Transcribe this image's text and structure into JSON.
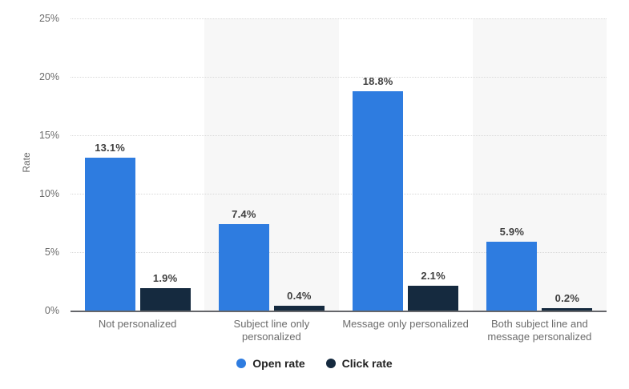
{
  "colors": {
    "background": "#ffffff",
    "band": "#f7f7f7",
    "gridline": "#d9d9d9",
    "axis_line": "#65666a",
    "tick_label": "#6b6b6b",
    "category_label": "#6b6b6b",
    "value_label": "#3f3f3f",
    "legend_label": "#222222",
    "open_rate": "#2e7ce0",
    "click_rate": "#152a3f"
  },
  "chart_data": {
    "type": "bar",
    "title": "",
    "xlabel": "",
    "ylabel": "Rate",
    "ylim": [
      0,
      25
    ],
    "yticks": [
      0,
      5,
      10,
      15,
      20,
      25
    ],
    "ytick_labels": [
      "0%",
      "5%",
      "10%",
      "15%",
      "20%",
      "25%"
    ],
    "grid": true,
    "grid_style": "dotted",
    "plot_bands": "alternating columns shaded",
    "legend_position": "bottom-center",
    "categories": [
      "Not personalized",
      "Subject line only personalized",
      "Message only personalized",
      "Both subject line and message personalized"
    ],
    "series": [
      {
        "name": "Open rate",
        "color": "#2e7ce0",
        "values": [
          13.1,
          7.4,
          18.8,
          5.9
        ],
        "value_labels": [
          "13.1%",
          "7.4%",
          "18.8%",
          "5.9%"
        ]
      },
      {
        "name": "Click rate",
        "color": "#152a3f",
        "values": [
          1.9,
          0.4,
          2.1,
          0.2
        ],
        "value_labels": [
          "1.9%",
          "0.4%",
          "2.1%",
          "0.2%"
        ]
      }
    ]
  }
}
